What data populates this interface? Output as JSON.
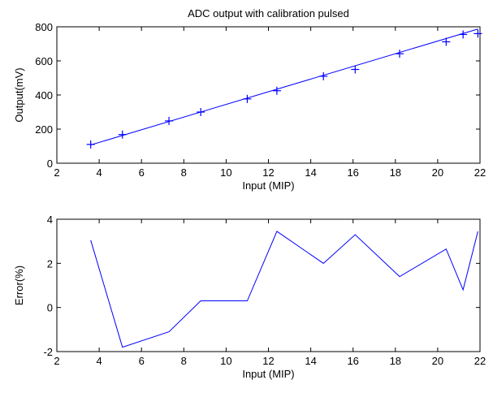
{
  "chart_data": [
    {
      "type": "scatter",
      "title": "ADC output with calibration pulsed",
      "xlabel": "Input (MIP)",
      "ylabel": "Output(mV)",
      "xlim": [
        2,
        22
      ],
      "ylim": [
        0,
        800
      ],
      "xticks": [
        2,
        4,
        6,
        8,
        10,
        12,
        14,
        16,
        18,
        20,
        22
      ],
      "yticks": [
        0,
        200,
        400,
        600,
        800
      ],
      "series": [
        {
          "marker": "plus",
          "color": "#0000ff",
          "x": [
            3.6,
            5.1,
            7.3,
            8.8,
            11.0,
            12.4,
            14.6,
            16.1,
            18.2,
            20.4,
            21.2,
            21.9
          ],
          "y": [
            110,
            168,
            248,
            300,
            377,
            425,
            510,
            550,
            642,
            712,
            755,
            760
          ]
        },
        {
          "line": "fit",
          "color": "#0000ff",
          "x": [
            3.6,
            21.9
          ],
          "y": [
            107,
            787
          ]
        }
      ]
    },
    {
      "type": "line",
      "title": "",
      "xlabel": "Input (MIP)",
      "ylabel": "Error(%)",
      "xlim": [
        2,
        22
      ],
      "ylim": [
        -2,
        4
      ],
      "xticks": [
        2,
        4,
        6,
        8,
        10,
        12,
        14,
        16,
        18,
        20,
        22
      ],
      "yticks": [
        -2,
        0,
        2,
        4
      ],
      "series": [
        {
          "color": "#0000ff",
          "x": [
            3.6,
            5.1,
            7.3,
            8.8,
            11.0,
            12.4,
            14.6,
            16.1,
            18.2,
            20.4,
            21.2,
            21.9
          ],
          "y": [
            3.05,
            -1.8,
            -1.1,
            0.3,
            0.3,
            3.45,
            2.0,
            3.3,
            1.4,
            2.65,
            0.8,
            3.45
          ]
        }
      ]
    }
  ]
}
